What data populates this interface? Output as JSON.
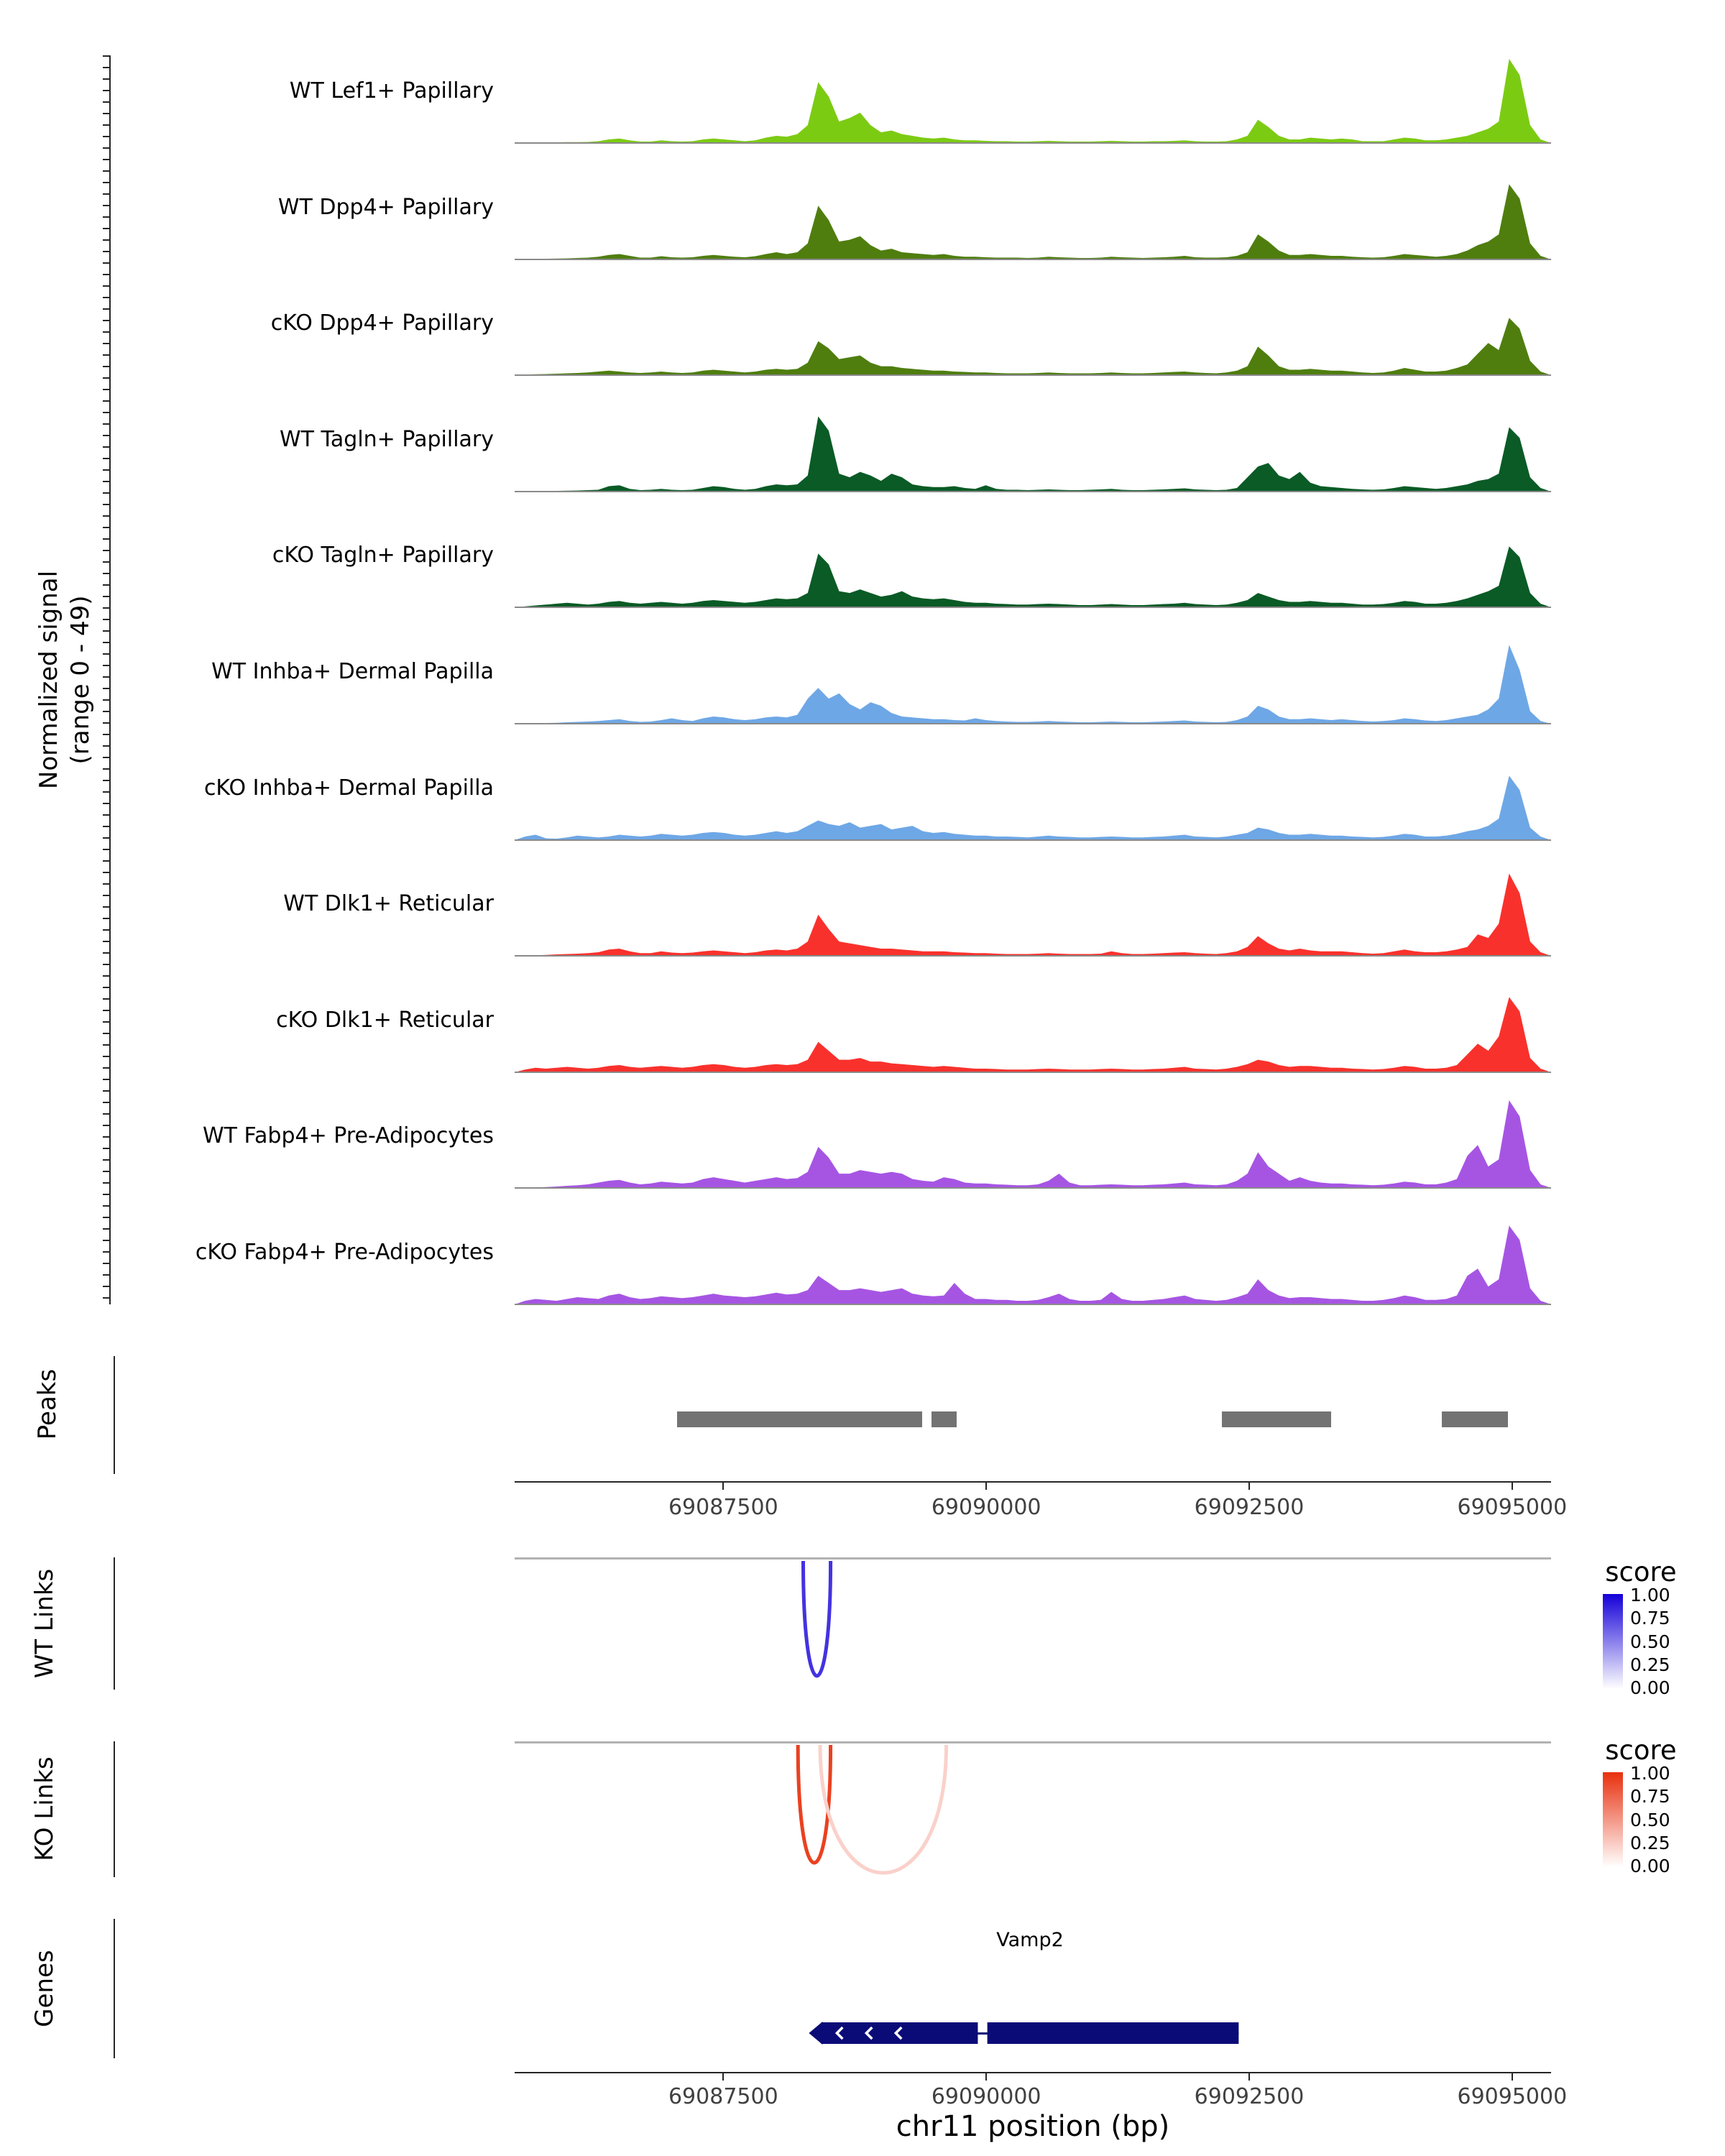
{
  "chart_data": {
    "type": "area",
    "region": {
      "chrom": "chr11",
      "start": 69085516,
      "end": 69095370
    },
    "y_axis": {
      "line1": "Normalized signal",
      "line2": "(range 0 - 49)",
      "range": [
        0,
        49
      ]
    },
    "x_axis": {
      "title": "chr11 position (bp)",
      "ticks": [
        69087500,
        69090000,
        69092500,
        69095000
      ]
    },
    "tracks": [
      {
        "label": "WT Lef1+ Papillary",
        "color": "#7CCB13",
        "values": [
          0,
          0,
          0,
          0.3,
          0.4,
          0.5,
          0.5,
          0.6,
          1,
          2,
          2.5,
          1.5,
          0.8,
          0.8,
          1.5,
          1,
          0.8,
          1,
          2,
          2.5,
          2,
          1.5,
          1,
          1.5,
          3,
          4,
          3.5,
          5,
          10,
          34,
          26,
          12,
          14,
          17,
          10,
          6,
          7,
          5,
          4,
          3,
          2.5,
          3,
          2,
          1.5,
          1.5,
          1.2,
          1,
          1,
          0.8,
          0.8,
          1,
          1.2,
          1,
          0.8,
          0.8,
          0.8,
          1,
          1.2,
          1,
          0.8,
          0.8,
          1,
          1,
          1.2,
          1.5,
          1,
          0.8,
          0.8,
          1,
          2,
          4,
          13,
          9,
          4,
          2,
          2,
          3,
          2.5,
          2,
          2.5,
          2,
          1,
          1,
          1,
          2,
          3,
          2.5,
          1.5,
          1.5,
          2,
          3,
          4,
          6,
          8,
          12,
          47,
          38,
          10,
          2,
          0
        ]
      },
      {
        "label": "WT Dpp4+ Papillary",
        "color": "#4F7E0F",
        "values": [
          0,
          0,
          0.3,
          0.4,
          0.5,
          0.6,
          0.8,
          1,
          1.5,
          2.5,
          3,
          2,
          1,
          1,
          1.8,
          1.2,
          1,
          1.2,
          2,
          2.5,
          2,
          1.5,
          1.2,
          1.8,
          3,
          4,
          3,
          4,
          9,
          30,
          22,
          10,
          11,
          13,
          8,
          5,
          6,
          4,
          3.5,
          3,
          2.5,
          3,
          2,
          1.5,
          1.5,
          1.2,
          1,
          1,
          1,
          0.8,
          1,
          1.5,
          1.2,
          1,
          0.8,
          0.8,
          1,
          1.5,
          1.2,
          1,
          0.8,
          1,
          1.2,
          1.5,
          2,
          1.2,
          1,
          1,
          1.2,
          2,
          4,
          14,
          10,
          5,
          2.5,
          2.5,
          3,
          2.5,
          2,
          2,
          1.5,
          1.2,
          1,
          1.2,
          2,
          3,
          2.5,
          2,
          1.5,
          2,
          3,
          5,
          8,
          10,
          14,
          42,
          34,
          9,
          2,
          0
        ]
      },
      {
        "label": "cKO Dpp4+ Papillary",
        "color": "#4F7E0F",
        "values": [
          0,
          0.3,
          0.5,
          0.6,
          0.8,
          1,
          1.2,
          1.5,
          2,
          2.5,
          2,
          1.5,
          1.2,
          1.5,
          2,
          1.5,
          1.2,
          1.5,
          2.5,
          3,
          2.5,
          2,
          1.5,
          2,
          3,
          3.5,
          3,
          3.5,
          7,
          19,
          15,
          9,
          10,
          11,
          7,
          5,
          5,
          4,
          3.5,
          3,
          2.5,
          2.5,
          2,
          1.8,
          1.5,
          1.5,
          1.2,
          1,
          1,
          1,
          1.2,
          1.5,
          1.2,
          1,
          1,
          1,
          1.2,
          1.5,
          1.2,
          1,
          1,
          1.2,
          1.5,
          1.8,
          2,
          1.5,
          1.2,
          1,
          1.5,
          2.5,
          5,
          16,
          11,
          5,
          3,
          3,
          3.5,
          3,
          2.5,
          2.5,
          2,
          1.5,
          1.2,
          1.5,
          2.5,
          4,
          3,
          2,
          2,
          2.5,
          4,
          6,
          12,
          18,
          14,
          32,
          26,
          8,
          2,
          0
        ]
      },
      {
        "label": "WT Tagln+ Papillary",
        "color": "#0A5B26",
        "values": [
          0,
          0,
          0,
          0.3,
          0.4,
          0.5,
          0.6,
          0.8,
          1,
          3,
          3.5,
          1.5,
          0.8,
          1,
          1.5,
          1,
          0.8,
          1,
          2,
          3,
          2.5,
          1.5,
          1,
          1.5,
          3,
          4,
          3.5,
          4,
          9,
          42,
          34,
          10,
          8,
          11,
          9,
          6,
          10,
          8,
          4,
          3,
          2.5,
          2.5,
          3,
          2,
          1.5,
          3.5,
          1.5,
          1,
          1,
          0.8,
          1,
          1.2,
          1,
          0.8,
          0.8,
          1,
          1.2,
          1.5,
          1,
          0.8,
          0.8,
          1,
          1.2,
          1.5,
          1.8,
          1.2,
          1,
          0.8,
          1,
          2,
          8,
          14,
          16,
          9,
          7,
          11,
          5,
          3,
          2.5,
          2,
          1.5,
          1.2,
          1,
          1.2,
          2,
          3,
          2.5,
          2,
          1.5,
          2,
          3,
          4,
          6,
          7,
          10,
          36,
          30,
          8,
          2,
          0
        ]
      },
      {
        "label": "cKO Tagln+ Papillary",
        "color": "#0A5B26",
        "values": [
          0,
          0.5,
          1,
          1.5,
          2,
          2.5,
          2,
          1.5,
          2,
          3,
          3.5,
          2.5,
          2,
          2.5,
          3,
          2.5,
          2,
          2.5,
          3.5,
          4,
          3.5,
          3,
          2.5,
          3,
          4,
          5,
          4.5,
          5,
          8,
          30,
          24,
          9,
          8,
          10,
          8,
          6,
          7,
          9,
          6,
          5,
          4.5,
          5,
          4,
          3,
          2.5,
          2.5,
          2,
          1.8,
          1.5,
          1.5,
          1.8,
          2,
          1.8,
          1.5,
          1.2,
          1.2,
          1.5,
          1.8,
          1.5,
          1.2,
          1.2,
          1.5,
          1.8,
          2,
          2.5,
          1.8,
          1.5,
          1.2,
          1.5,
          2.5,
          4,
          8,
          6,
          4,
          3,
          3,
          3.5,
          3,
          2.5,
          2.5,
          2,
          1.5,
          1.5,
          1.8,
          2.5,
          3.5,
          3,
          2,
          2,
          2.5,
          3.5,
          5,
          7,
          9,
          12,
          34,
          28,
          8,
          2,
          0
        ]
      },
      {
        "label": "WT Inhba+ Dermal Papilla",
        "color": "#6EA7E6",
        "values": [
          0,
          0,
          0.3,
          0.4,
          0.5,
          0.8,
          1,
          1.2,
          1.5,
          2,
          2.5,
          1.5,
          1,
          1.2,
          2,
          3,
          2,
          1.5,
          3,
          4,
          3.5,
          2.5,
          2,
          2.5,
          3.5,
          4,
          3.5,
          5,
          14,
          20,
          14,
          17,
          11,
          8,
          12,
          10,
          6,
          4,
          3.5,
          3,
          2.5,
          2.5,
          2,
          1.8,
          3,
          2,
          1.5,
          1.2,
          1,
          1,
          1.2,
          1.5,
          1.2,
          1,
          0.8,
          0.8,
          1,
          1.2,
          1,
          0.8,
          0.8,
          1,
          1.2,
          1.5,
          1.8,
          1.2,
          1,
          0.8,
          1,
          2,
          4,
          10,
          8,
          4,
          2.5,
          2.5,
          3,
          2.5,
          2,
          2.5,
          2,
          1.5,
          1.2,
          1.5,
          2,
          3,
          2.5,
          1.8,
          1.5,
          2,
          3,
          4,
          5,
          8,
          14,
          44,
          30,
          7,
          1.5,
          0
        ]
      },
      {
        "label": "cKO Inhba+ Dermal Papilla",
        "color": "#6EA7E6",
        "values": [
          0,
          2,
          3,
          1,
          0.8,
          1.5,
          2.5,
          2,
          1.5,
          2,
          3,
          2.5,
          2,
          2.5,
          3.5,
          3,
          2.5,
          3,
          4,
          4.5,
          4,
          3,
          2.5,
          3,
          4,
          5,
          4,
          5,
          8,
          11,
          9,
          8,
          10,
          7,
          8,
          9,
          6,
          7,
          8,
          5,
          4,
          4.5,
          3.5,
          3,
          2.5,
          2.5,
          2,
          2,
          1.8,
          1.5,
          2,
          2.5,
          2,
          1.8,
          1.5,
          1.5,
          1.8,
          2,
          1.8,
          1.5,
          1.5,
          1.8,
          2,
          2.5,
          3,
          2,
          1.8,
          1.5,
          2,
          3,
          4,
          7,
          6,
          4,
          3,
          3,
          3.5,
          3,
          2.5,
          2.5,
          2,
          1.8,
          1.5,
          1.8,
          2.5,
          3.5,
          3,
          2,
          2,
          2.5,
          3.5,
          5,
          6,
          8,
          12,
          36,
          28,
          7,
          2,
          0
        ]
      },
      {
        "label": "WT Dlk1+ Reticular",
        "color": "#F9312C",
        "values": [
          0,
          0,
          0.3,
          0.5,
          0.8,
          1,
          1.2,
          1.5,
          2,
          3.5,
          4,
          2.5,
          1.5,
          1.5,
          2.5,
          1.8,
          1.5,
          1.8,
          2.5,
          3,
          2.5,
          2,
          1.5,
          2,
          3,
          3.5,
          3,
          4,
          8,
          23,
          15,
          8,
          7,
          6,
          5,
          4,
          4,
          3.5,
          3,
          2.5,
          2.5,
          2.5,
          2,
          1.8,
          1.5,
          1.5,
          1.2,
          1,
          1,
          1,
          1.2,
          1.5,
          1.2,
          1,
          1,
          1,
          1.2,
          2.5,
          1.5,
          1,
          1,
          1.2,
          1.5,
          1.8,
          2,
          1.5,
          1.2,
          1,
          1.5,
          2.5,
          5,
          11,
          7,
          4,
          3,
          4,
          3,
          2.5,
          2.5,
          2.5,
          2,
          1.5,
          1.2,
          1.5,
          2.5,
          3.5,
          2.5,
          2,
          2,
          2.5,
          3.5,
          5,
          12,
          10,
          18,
          46,
          35,
          8,
          2,
          0
        ]
      },
      {
        "label": "cKO Dlk1+ Reticular",
        "color": "#F9312C",
        "values": [
          0,
          1.5,
          2.5,
          2,
          2.5,
          3,
          2.5,
          2,
          2.5,
          3.5,
          4,
          3,
          2.5,
          3,
          3.5,
          3,
          2.5,
          3,
          4,
          4.5,
          4,
          3,
          2.5,
          3,
          4,
          4.5,
          4,
          4.5,
          7,
          17,
          12,
          7,
          7,
          8,
          6,
          6,
          5,
          4.5,
          4,
          3.5,
          3,
          3.5,
          3,
          2.5,
          2,
          2,
          1.8,
          1.5,
          1.5,
          1.5,
          1.8,
          2,
          1.8,
          1.5,
          1.5,
          1.5,
          1.8,
          2,
          1.8,
          1.5,
          1.5,
          1.8,
          2,
          2.5,
          3,
          2,
          1.8,
          1.5,
          2,
          3,
          4.5,
          7,
          6,
          4,
          3,
          3.5,
          3.5,
          3,
          2.5,
          2.5,
          2,
          1.8,
          1.5,
          1.8,
          2.5,
          3.5,
          3,
          2,
          2,
          2.5,
          4,
          10,
          16,
          12,
          20,
          42,
          34,
          8,
          2,
          0
        ]
      },
      {
        "label": "WT Fabp4+ Pre-Adipocytes",
        "color": "#A655E3",
        "values": [
          0,
          0,
          0.3,
          0.5,
          0.8,
          1.2,
          1.5,
          2,
          3,
          4,
          4.5,
          3,
          2,
          2.5,
          3.5,
          3,
          2.5,
          3,
          5,
          6,
          5,
          4,
          3,
          4,
          5,
          6,
          5,
          5.5,
          9,
          23,
          17,
          8,
          8,
          10,
          9,
          8,
          9,
          8,
          5,
          4,
          3.5,
          6,
          5,
          3,
          2.5,
          2.5,
          2,
          1.8,
          1.5,
          1.5,
          2,
          4,
          8,
          3,
          1.5,
          1.5,
          1.8,
          2,
          1.8,
          1.5,
          1.5,
          1.8,
          2,
          2.5,
          3,
          2,
          1.8,
          1.5,
          2,
          4,
          8,
          20,
          12,
          8,
          4,
          6,
          4,
          3,
          2.5,
          2.5,
          2,
          1.8,
          1.5,
          1.8,
          2.5,
          3.5,
          3,
          2,
          2,
          3,
          5,
          18,
          24,
          12,
          16,
          49,
          40,
          10,
          2,
          0
        ]
      },
      {
        "label": "cKO Fabp4+ Pre-Adipocytes",
        "color": "#A655E3",
        "values": [
          0,
          2,
          3,
          2.5,
          2,
          3,
          4,
          3.5,
          3,
          5,
          6,
          4,
          3,
          3.5,
          4.5,
          4,
          3.5,
          4,
          5,
          6,
          5,
          4.5,
          4,
          4.5,
          5.5,
          6.5,
          5.5,
          6,
          8,
          16,
          12,
          8,
          8,
          9,
          8,
          7,
          8,
          9,
          6,
          5,
          4.5,
          5,
          12,
          6,
          3,
          3,
          2.5,
          2.5,
          2,
          2,
          2.5,
          4,
          6,
          3,
          2,
          2,
          2.5,
          7,
          3,
          2,
          2,
          2.5,
          3,
          4,
          5,
          3,
          2.5,
          2,
          2.5,
          4,
          6,
          14,
          8,
          5,
          3.5,
          4,
          4,
          3.5,
          3,
          3,
          2.5,
          2,
          2,
          2.5,
          3.5,
          5,
          4,
          2.5,
          2.5,
          3,
          5,
          16,
          20,
          10,
          14,
          44,
          36,
          9,
          2,
          0
        ]
      }
    ],
    "peaks": {
      "label": "Peaks",
      "color": "#737373",
      "intervals": [
        [
          69087060,
          69089390
        ],
        [
          69089480,
          69089720
        ],
        [
          69092240,
          69093280
        ],
        [
          69094330,
          69094960
        ]
      ]
    },
    "links": {
      "wt": {
        "label": "WT Links",
        "legend_title": "score",
        "legend_ticks": [
          "1.00",
          "0.75",
          "0.50",
          "0.25",
          "0.00"
        ],
        "gradient_high": "#1400D8",
        "arcs": [
          {
            "start": 69088260,
            "end": 69088520,
            "score": 0.8
          }
        ]
      },
      "ko": {
        "label": "KO Links",
        "legend_title": "score",
        "legend_ticks": [
          "1.00",
          "0.75",
          "0.50",
          "0.25",
          "0.00"
        ],
        "gradient_high": "#E8300E",
        "arcs": [
          {
            "start": 69088210,
            "end": 69088520,
            "score": 0.92
          },
          {
            "start": 69088420,
            "end": 69089620,
            "score": 0.22
          }
        ]
      }
    },
    "genes": {
      "label": "Genes",
      "color": "#0B0B78",
      "items": [
        {
          "name": "Vamp2",
          "start": 69088430,
          "end": 69092400,
          "strand": "-",
          "segments": [
            [
              69088430,
              69089920
            ],
            [
              69090010,
              69092400
            ]
          ]
        }
      ]
    }
  }
}
